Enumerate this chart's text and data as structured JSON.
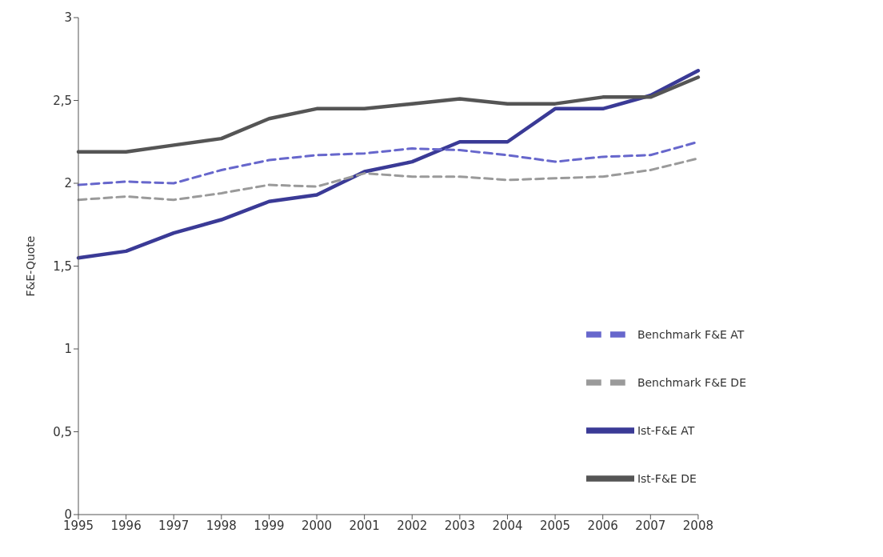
{
  "chart_data": {
    "type": "line",
    "ylabel": "F&E-Quote",
    "categories": [
      "1995",
      "1996",
      "1997",
      "1998",
      "1999",
      "2000",
      "2001",
      "2002",
      "2003",
      "2004",
      "2005",
      "2006",
      "2007",
      "2008"
    ],
    "ylim": [
      0,
      3
    ],
    "yticks": [
      0,
      {
        "value": 0.5,
        "label": "0,5"
      },
      1,
      {
        "value": 1.5,
        "label": "1,5"
      },
      2,
      {
        "value": 2.5,
        "label": "2,5"
      },
      3
    ],
    "grid": false,
    "legend": "right",
    "marker": "none",
    "series": [
      {
        "name": "Ist-F&E AT",
        "color": "#3a3a96",
        "line_style": "solid",
        "values": [
          1.55,
          1.59,
          1.7,
          1.78,
          1.89,
          1.93,
          2.07,
          2.13,
          2.25,
          2.25,
          2.45,
          2.45,
          2.53,
          2.68
        ]
      },
      {
        "name": "Benchmark F&E AT",
        "color": "#6767cc",
        "line_style": "dashed",
        "values": [
          1.99,
          2.01,
          2.0,
          2.08,
          2.14,
          2.17,
          2.18,
          2.21,
          2.2,
          2.17,
          2.13,
          2.16,
          2.17,
          2.25
        ]
      },
      {
        "name": "Ist-F&E DE",
        "color": "#555555",
        "line_style": "solid",
        "values": [
          2.19,
          2.19,
          2.23,
          2.27,
          2.39,
          2.45,
          2.45,
          2.48,
          2.51,
          2.48,
          2.48,
          2.52,
          2.52,
          2.64
        ]
      },
      {
        "name": "Benchmark F&E DE",
        "color": "#9a9a9a",
        "line_style": "dashed",
        "values": [
          1.9,
          1.92,
          1.9,
          1.94,
          1.99,
          1.98,
          2.06,
          2.04,
          2.04,
          2.02,
          2.03,
          2.04,
          2.08,
          2.15
        ]
      }
    ]
  }
}
